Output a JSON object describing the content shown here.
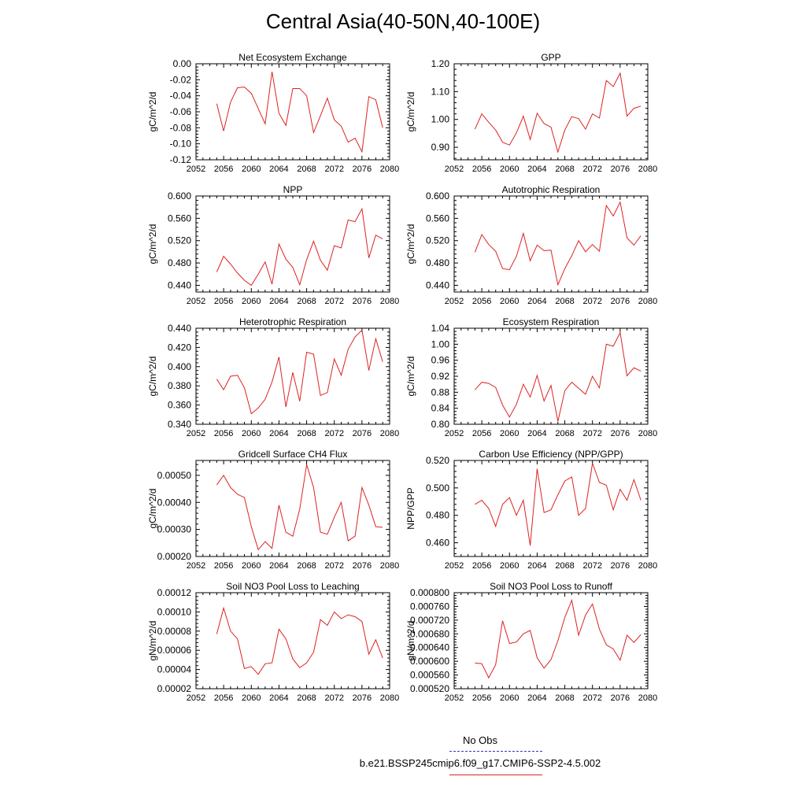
{
  "title": "Central Asia(40-50N,40-100E)",
  "legend": {
    "obs_label": "No Obs",
    "obs_color": "#3333cc",
    "model_label": "b.e21.BSSP245cmip6.f09_g17.CMIP6-SSP2-4.5.002",
    "model_color": "#dd2222"
  },
  "chart_data": [
    {
      "type": "line",
      "title": "Net Ecosystem Exchange",
      "ylabel": "gC/m^2/d",
      "xlim": [
        2052,
        2080
      ],
      "x_ticks": [
        "2052",
        "2056",
        "2060",
        "2064",
        "2068",
        "2072",
        "2076",
        "2080"
      ],
      "y_ticks": [
        "0.00",
        "-0.02",
        "-0.04",
        "-0.06",
        "-0.08",
        "-0.10",
        "-0.12"
      ],
      "ylim": [
        -0.12,
        0.0
      ],
      "series": [
        {
          "x": [
            2055,
            2056,
            2057,
            2058,
            2059,
            2060,
            2061,
            2062,
            2063,
            2064,
            2065,
            2066,
            2067,
            2068,
            2069,
            2070,
            2071,
            2072,
            2073,
            2074,
            2075,
            2076,
            2077,
            2078,
            2079
          ],
          "values": [
            -0.05,
            -0.084,
            -0.048,
            -0.03,
            -0.029,
            -0.037,
            -0.056,
            -0.075,
            -0.01,
            -0.062,
            -0.077,
            -0.031,
            -0.031,
            -0.04,
            -0.086,
            -0.065,
            -0.043,
            -0.07,
            -0.078,
            -0.098,
            -0.093,
            -0.11,
            -0.041,
            -0.045,
            -0.08
          ]
        }
      ]
    },
    {
      "type": "line",
      "title": "GPP",
      "ylabel": "gC/m^2/d",
      "xlim": [
        2052,
        2080
      ],
      "x_ticks": [
        "2052",
        "2056",
        "2060",
        "2064",
        "2068",
        "2072",
        "2076",
        "2080"
      ],
      "y_ticks": [
        "1.20",
        "1.10",
        "1.00",
        "0.90"
      ],
      "ylim": [
        0.855,
        1.2
      ],
      "series": [
        {
          "x": [
            2055,
            2056,
            2057,
            2058,
            2059,
            2060,
            2061,
            2062,
            2063,
            2064,
            2065,
            2066,
            2067,
            2068,
            2069,
            2070,
            2071,
            2072,
            2073,
            2074,
            2075,
            2076,
            2077,
            2078,
            2079
          ],
          "values": [
            0.965,
            1.02,
            0.99,
            0.962,
            0.918,
            0.908,
            0.952,
            1.012,
            0.928,
            1.022,
            0.985,
            0.972,
            0.883,
            0.962,
            1.01,
            1.003,
            0.965,
            1.02,
            1.005,
            1.14,
            1.118,
            1.166,
            1.012,
            1.04,
            1.048
          ]
        }
      ]
    },
    {
      "type": "line",
      "title": "NPP",
      "ylabel": "gC/m^2/d",
      "xlim": [
        2052,
        2080
      ],
      "x_ticks": [
        "2052",
        "2056",
        "2060",
        "2064",
        "2068",
        "2072",
        "2076",
        "2080"
      ],
      "y_ticks": [
        "0.600",
        "0.560",
        "0.520",
        "0.480",
        "0.440"
      ],
      "ylim": [
        0.428,
        0.6
      ],
      "series": [
        {
          "x": [
            2055,
            2056,
            2057,
            2058,
            2059,
            2060,
            2061,
            2062,
            2063,
            2064,
            2065,
            2066,
            2067,
            2068,
            2069,
            2070,
            2071,
            2072,
            2073,
            2074,
            2075,
            2076,
            2077,
            2078,
            2079
          ],
          "values": [
            0.464,
            0.492,
            0.478,
            0.462,
            0.449,
            0.44,
            0.46,
            0.482,
            0.442,
            0.514,
            0.487,
            0.472,
            0.441,
            0.486,
            0.519,
            0.485,
            0.467,
            0.511,
            0.507,
            0.557,
            0.554,
            0.577,
            0.489,
            0.53,
            0.523
          ]
        }
      ]
    },
    {
      "type": "line",
      "title": "Autotrophic Respiration",
      "ylabel": "gC/m^2/d",
      "xlim": [
        2052,
        2080
      ],
      "x_ticks": [
        "2052",
        "2056",
        "2060",
        "2064",
        "2068",
        "2072",
        "2076",
        "2080"
      ],
      "y_ticks": [
        "0.600",
        "0.560",
        "0.520",
        "0.480",
        "0.440"
      ],
      "ylim": [
        0.428,
        0.6
      ],
      "series": [
        {
          "x": [
            2055,
            2056,
            2057,
            2058,
            2059,
            2060,
            2061,
            2062,
            2063,
            2064,
            2065,
            2066,
            2067,
            2068,
            2069,
            2070,
            2071,
            2072,
            2073,
            2074,
            2075,
            2076,
            2077,
            2078,
            2079
          ],
          "values": [
            0.499,
            0.531,
            0.513,
            0.501,
            0.47,
            0.468,
            0.492,
            0.533,
            0.484,
            0.512,
            0.502,
            0.503,
            0.441,
            0.47,
            0.493,
            0.52,
            0.5,
            0.513,
            0.501,
            0.583,
            0.564,
            0.589,
            0.525,
            0.512,
            0.529
          ]
        }
      ]
    },
    {
      "type": "line",
      "title": "Heterotrophic Respiration",
      "ylabel": "gC/m^2/d",
      "xlim": [
        2052,
        2080
      ],
      "x_ticks": [
        "2052",
        "2056",
        "2060",
        "2064",
        "2068",
        "2072",
        "2076",
        "2080"
      ],
      "y_ticks": [
        "0.440",
        "0.420",
        "0.400",
        "0.380",
        "0.360",
        "0.340"
      ],
      "ylim": [
        0.34,
        0.44
      ],
      "series": [
        {
          "x": [
            2055,
            2056,
            2057,
            2058,
            2059,
            2060,
            2061,
            2062,
            2063,
            2064,
            2065,
            2066,
            2067,
            2068,
            2069,
            2070,
            2071,
            2072,
            2073,
            2074,
            2075,
            2076,
            2077,
            2078,
            2079
          ],
          "values": [
            0.387,
            0.376,
            0.39,
            0.391,
            0.378,
            0.351,
            0.357,
            0.366,
            0.384,
            0.41,
            0.358,
            0.394,
            0.364,
            0.415,
            0.413,
            0.37,
            0.373,
            0.408,
            0.391,
            0.418,
            0.431,
            0.438,
            0.396,
            0.429,
            0.405
          ]
        }
      ]
    },
    {
      "type": "line",
      "title": "Ecosystem Respiration",
      "ylabel": "gC/m^2/d",
      "xlim": [
        2052,
        2080
      ],
      "x_ticks": [
        "2052",
        "2056",
        "2060",
        "2064",
        "2068",
        "2072",
        "2076",
        "2080"
      ],
      "y_ticks": [
        "1.04",
        "1.00",
        "0.96",
        "0.92",
        "0.88",
        "0.84",
        "0.80"
      ],
      "ylim": [
        0.8,
        1.04
      ],
      "series": [
        {
          "x": [
            2055,
            2056,
            2057,
            2058,
            2059,
            2060,
            2061,
            2062,
            2063,
            2064,
            2065,
            2066,
            2067,
            2068,
            2069,
            2070,
            2071,
            2072,
            2073,
            2074,
            2075,
            2076,
            2077,
            2078,
            2079
          ],
          "values": [
            0.886,
            0.905,
            0.902,
            0.892,
            0.848,
            0.818,
            0.85,
            0.9,
            0.868,
            0.922,
            0.858,
            0.897,
            0.807,
            0.884,
            0.905,
            0.89,
            0.875,
            0.92,
            0.891,
            1.0,
            0.995,
            1.029,
            0.921,
            0.941,
            0.933
          ]
        }
      ]
    },
    {
      "type": "line",
      "title": "Gridcell Surface CH4 Flux",
      "ylabel": "gC/m^2/d",
      "xlim": [
        2052,
        2080
      ],
      "x_ticks": [
        "2052",
        "2056",
        "2060",
        "2064",
        "2068",
        "2072",
        "2076",
        "2080"
      ],
      "y_ticks": [
        "0.00050",
        "0.00040",
        "0.00030",
        "0.00020"
      ],
      "ylim": [
        0.0002,
        0.000555
      ],
      "series": [
        {
          "x": [
            2055,
            2056,
            2057,
            2058,
            2059,
            2060,
            2061,
            2062,
            2063,
            2064,
            2065,
            2066,
            2067,
            2068,
            2069,
            2070,
            2071,
            2072,
            2073,
            2074,
            2075,
            2076,
            2077,
            2078,
            2079
          ],
          "values": [
            0.000465,
            0.0005,
            0.000455,
            0.00043,
            0.000418,
            0.00031,
            0.000225,
            0.000255,
            0.00023,
            0.00039,
            0.00029,
            0.000275,
            0.000375,
            0.00054,
            0.000455,
            0.00029,
            0.000282,
            0.000345,
            0.0004,
            0.000258,
            0.000275,
            0.000455,
            0.00039,
            0.00031,
            0.000308
          ]
        }
      ]
    },
    {
      "type": "line",
      "title": "Carbon Use Efficiency (NPP/GPP)",
      "ylabel": "NPP/GPP",
      "xlim": [
        2052,
        2080
      ],
      "x_ticks": [
        "2052",
        "2056",
        "2060",
        "2064",
        "2068",
        "2072",
        "2076",
        "2080"
      ],
      "y_ticks": [
        "0.520",
        "0.500",
        "0.480",
        "0.460"
      ],
      "ylim": [
        0.45,
        0.52
      ],
      "series": [
        {
          "x": [
            2055,
            2056,
            2057,
            2058,
            2059,
            2060,
            2061,
            2062,
            2063,
            2064,
            2065,
            2066,
            2067,
            2068,
            2069,
            2070,
            2071,
            2072,
            2073,
            2074,
            2075,
            2076,
            2077,
            2078,
            2079
          ],
          "values": [
            0.488,
            0.491,
            0.485,
            0.472,
            0.488,
            0.493,
            0.48,
            0.491,
            0.458,
            0.514,
            0.482,
            0.484,
            0.495,
            0.505,
            0.508,
            0.48,
            0.485,
            0.518,
            0.504,
            0.502,
            0.484,
            0.499,
            0.491,
            0.506,
            0.491
          ]
        }
      ]
    },
    {
      "type": "line",
      "title": "Soil NO3 Pool Loss to Leaching",
      "ylabel": "gN/m^2/d",
      "xlim": [
        2052,
        2080
      ],
      "x_ticks": [
        "2052",
        "2056",
        "2060",
        "2064",
        "2068",
        "2072",
        "2076",
        "2080"
      ],
      "y_ticks": [
        "0.00012",
        "0.00010",
        "0.00008",
        "0.00006",
        "0.00004",
        "0.00002"
      ],
      "ylim": [
        2e-05,
        0.00012
      ],
      "series": [
        {
          "x": [
            2055,
            2056,
            2057,
            2058,
            2059,
            2060,
            2061,
            2062,
            2063,
            2064,
            2065,
            2066,
            2067,
            2068,
            2069,
            2070,
            2071,
            2072,
            2073,
            2074,
            2075,
            2076,
            2077,
            2078,
            2079
          ],
          "values": [
            7.7e-05,
            0.000104,
            8e-05,
            7.2e-05,
            4.1e-05,
            4.3e-05,
            3.5e-05,
            4.6e-05,
            4.7e-05,
            8.2e-05,
            7.2e-05,
            5.1e-05,
            4.2e-05,
            4.7e-05,
            5.8e-05,
            9.2e-05,
            8.6e-05,
            0.0001,
            9.3e-05,
            9.7e-05,
            9.5e-05,
            9e-05,
            5.6e-05,
            7.1e-05,
            5.2e-05
          ]
        }
      ]
    },
    {
      "type": "line",
      "title": "Soil NO3 Pool Loss to Runoff",
      "ylabel": "gN/m^2/d",
      "xlim": [
        2052,
        2080
      ],
      "x_ticks": [
        "2052",
        "2056",
        "2060",
        "2064",
        "2068",
        "2072",
        "2076",
        "2080"
      ],
      "y_ticks": [
        "0.000800",
        "0.000760",
        "0.000720",
        "0.000680",
        "0.000640",
        "0.000600",
        "0.000560",
        "0.000520"
      ],
      "ylim": [
        0.00052,
        0.0008
      ],
      "series": [
        {
          "x": [
            2055,
            2056,
            2057,
            2058,
            2059,
            2060,
            2061,
            2062,
            2063,
            2064,
            2065,
            2066,
            2067,
            2068,
            2069,
            2070,
            2071,
            2072,
            2073,
            2074,
            2075,
            2076,
            2077,
            2078,
            2079
          ],
          "values": [
            0.000595,
            0.000593,
            0.000552,
            0.00059,
            0.000718,
            0.000652,
            0.000656,
            0.00068,
            0.00069,
            0.00061,
            0.00058,
            0.000605,
            0.00066,
            0.000728,
            0.000778,
            0.000676,
            0.000735,
            0.000767,
            0.000694,
            0.000648,
            0.000636,
            0.000603,
            0.000676,
            0.000655,
            0.000678
          ]
        }
      ]
    }
  ]
}
